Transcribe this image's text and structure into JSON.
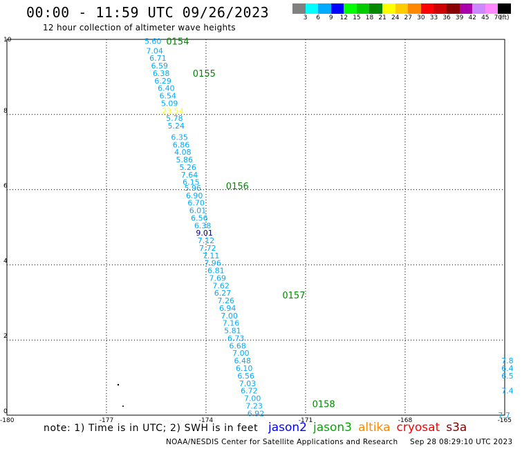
{
  "header": {
    "title": "00:00 - 11:59 UTC 09/26/2023",
    "subtitle": "12 hour collection of altimeter wave heights"
  },
  "colorbar": {
    "swatches": [
      "#808080",
      "#00ffff",
      "#00aaff",
      "#0000ff",
      "#00ff00",
      "#00cc00",
      "#008800",
      "#ffff00",
      "#ffcc00",
      "#ff8800",
      "#ff0000",
      "#cc0000",
      "#880000",
      "#aa00aa",
      "#cc88ff",
      "#ff88ff",
      "#000000"
    ],
    "labels": [
      "3",
      "6",
      "9",
      "12",
      "15",
      "18",
      "21",
      "24",
      "27",
      "30",
      "33",
      "36",
      "39",
      "42",
      "45",
      "70",
      "(ft)"
    ]
  },
  "chart_data": {
    "type": "scatter",
    "title": "00:00 - 11:59 UTC 09/26/2023",
    "subtitle": "12 hour collection of altimeter wave heights",
    "xlim": [
      -180,
      -165
    ],
    "ylim": [
      0,
      10
    ],
    "x_ticks": [
      "-180",
      "-177",
      "-174",
      "-171",
      "-168",
      "-165"
    ],
    "y_ticks": [
      "0",
      "2",
      "4",
      "6",
      "8",
      "10"
    ],
    "grid": true,
    "time_labels": [
      {
        "text": "0154",
        "x": -175.2,
        "y": 9.95
      },
      {
        "text": "0155",
        "x": -174.4,
        "y": 9.1
      },
      {
        "text": "0156",
        "x": -173.4,
        "y": 6.1
      },
      {
        "text": "0157",
        "x": -171.7,
        "y": 3.2
      },
      {
        "text": "0158",
        "x": -170.8,
        "y": 0.3
      }
    ],
    "observations": [
      {
        "label": "5.60",
        "x": -175.6,
        "y": 9.95,
        "color": "#00aaff"
      },
      {
        "label": "7.04",
        "x": -175.55,
        "y": 9.7,
        "color": "#00aaff"
      },
      {
        "label": "6.71",
        "x": -175.45,
        "y": 9.5,
        "color": "#00aaff"
      },
      {
        "label": "6.59",
        "x": -175.4,
        "y": 9.3,
        "color": "#00aaff"
      },
      {
        "label": "6.38",
        "x": -175.35,
        "y": 9.1,
        "color": "#00aaff"
      },
      {
        "label": "6.29",
        "x": -175.3,
        "y": 8.9,
        "color": "#00aaff"
      },
      {
        "label": "6.40",
        "x": -175.2,
        "y": 8.7,
        "color": "#00aaff"
      },
      {
        "label": "6.54",
        "x": -175.15,
        "y": 8.5,
        "color": "#00aaff"
      },
      {
        "label": "5.09",
        "x": -175.1,
        "y": 8.3,
        "color": "#00aaff"
      },
      {
        "label": "23.54",
        "x": -175.0,
        "y": 8.1,
        "color": "#ffff00"
      },
      {
        "label": "5.78",
        "x": -174.95,
        "y": 7.9,
        "color": "#00aaff"
      },
      {
        "label": "5.24",
        "x": -174.9,
        "y": 7.7,
        "color": "#00aaff"
      },
      {
        "label": "6.35",
        "x": -174.8,
        "y": 7.4,
        "color": "#00aaff"
      },
      {
        "label": "6.86",
        "x": -174.75,
        "y": 7.2,
        "color": "#00aaff"
      },
      {
        "label": "4.08",
        "x": -174.7,
        "y": 7.0,
        "color": "#00aaff"
      },
      {
        "label": "5.86",
        "x": -174.65,
        "y": 6.8,
        "color": "#00aaff"
      },
      {
        "label": "5.26",
        "x": -174.55,
        "y": 6.6,
        "color": "#00aaff"
      },
      {
        "label": "7.64",
        "x": -174.5,
        "y": 6.4,
        "color": "#00aaff"
      },
      {
        "label": "6.15",
        "x": -174.45,
        "y": 6.2,
        "color": "#00aaff"
      },
      {
        "label": "5.96",
        "x": -174.4,
        "y": 6.05,
        "color": "#00aaff"
      },
      {
        "label": "6.90",
        "x": -174.35,
        "y": 5.85,
        "color": "#00aaff"
      },
      {
        "label": "6.70",
        "x": -174.3,
        "y": 5.65,
        "color": "#00aaff"
      },
      {
        "label": "6.01",
        "x": -174.25,
        "y": 5.45,
        "color": "#00aaff"
      },
      {
        "label": "6.56",
        "x": -174.2,
        "y": 5.25,
        "color": "#00aaff"
      },
      {
        "label": "6.38",
        "x": -174.1,
        "y": 5.05,
        "color": "#00aaff"
      },
      {
        "label": "9.01",
        "x": -174.05,
        "y": 4.85,
        "color": "#000080"
      },
      {
        "label": "7.12",
        "x": -174.0,
        "y": 4.65,
        "color": "#00aaff"
      },
      {
        "label": "7.72",
        "x": -173.95,
        "y": 4.45,
        "color": "#00aaff"
      },
      {
        "label": "7.11",
        "x": -173.85,
        "y": 4.25,
        "color": "#00aaff"
      },
      {
        "label": "7.96",
        "x": -173.8,
        "y": 4.05,
        "color": "#00aaff"
      },
      {
        "label": "6.81",
        "x": -173.7,
        "y": 3.85,
        "color": "#00aaff"
      },
      {
        "label": "7.69",
        "x": -173.65,
        "y": 3.65,
        "color": "#00aaff"
      },
      {
        "label": "7.62",
        "x": -173.55,
        "y": 3.45,
        "color": "#00aaff"
      },
      {
        "label": "6.27",
        "x": -173.5,
        "y": 3.25,
        "color": "#00aaff"
      },
      {
        "label": "7.26",
        "x": -173.4,
        "y": 3.05,
        "color": "#00aaff"
      },
      {
        "label": "6.94",
        "x": -173.35,
        "y": 2.85,
        "color": "#00aaff"
      },
      {
        "label": "7.00",
        "x": -173.3,
        "y": 2.65,
        "color": "#00aaff"
      },
      {
        "label": "7.16",
        "x": -173.25,
        "y": 2.45,
        "color": "#00aaff"
      },
      {
        "label": "5.81",
        "x": -173.2,
        "y": 2.25,
        "color": "#00aaff"
      },
      {
        "label": "6.73",
        "x": -173.1,
        "y": 2.05,
        "color": "#00aaff"
      },
      {
        "label": "6.68",
        "x": -173.05,
        "y": 1.85,
        "color": "#00aaff"
      },
      {
        "label": "7.00",
        "x": -172.95,
        "y": 1.65,
        "color": "#00aaff"
      },
      {
        "label": "6.48",
        "x": -172.9,
        "y": 1.45,
        "color": "#00aaff"
      },
      {
        "label": "6.10",
        "x": -172.85,
        "y": 1.25,
        "color": "#00aaff"
      },
      {
        "label": "6.56",
        "x": -172.8,
        "y": 1.05,
        "color": "#00aaff"
      },
      {
        "label": "7.03",
        "x": -172.75,
        "y": 0.85,
        "color": "#00aaff"
      },
      {
        "label": "6.72",
        "x": -172.7,
        "y": 0.65,
        "color": "#00aaff"
      },
      {
        "label": "7.00",
        "x": -172.6,
        "y": 0.45,
        "color": "#00aaff"
      },
      {
        "label": "7.23",
        "x": -172.55,
        "y": 0.25,
        "color": "#00aaff"
      },
      {
        "label": "6.92",
        "x": -172.5,
        "y": 0.05,
        "color": "#00aaff"
      }
    ],
    "edge_labels": [
      {
        "label": "7.8",
        "x": -165.1,
        "y": 1.45,
        "color": "#00aaff"
      },
      {
        "label": "6.4",
        "x": -165.1,
        "y": 1.25,
        "color": "#00aaff"
      },
      {
        "label": "6.5",
        "x": -165.1,
        "y": 1.05,
        "color": "#00aaff"
      },
      {
        "label": "7.4",
        "x": -165.1,
        "y": 0.65,
        "color": "#00aaff"
      },
      {
        "label": "7.7",
        "x": -165.2,
        "y": 0.0,
        "color": "#00aaff"
      }
    ]
  },
  "footer": {
    "note": "note: 1) Time is in UTC; 2) SWH is in feet",
    "legend": [
      {
        "name": "jason2",
        "color": "#0000ff"
      },
      {
        "name": "jason3",
        "color": "#00aa00"
      },
      {
        "name": "altika",
        "color": "#ff8800"
      },
      {
        "name": "cryosat",
        "color": "#ff0000"
      },
      {
        "name": "s3a",
        "color": "#880000"
      }
    ],
    "credit_org": "NOAA/NESDIS Center for Satellite Applications and Research",
    "credit_time": "Sep 28 08:29:10 UTC 2023"
  }
}
